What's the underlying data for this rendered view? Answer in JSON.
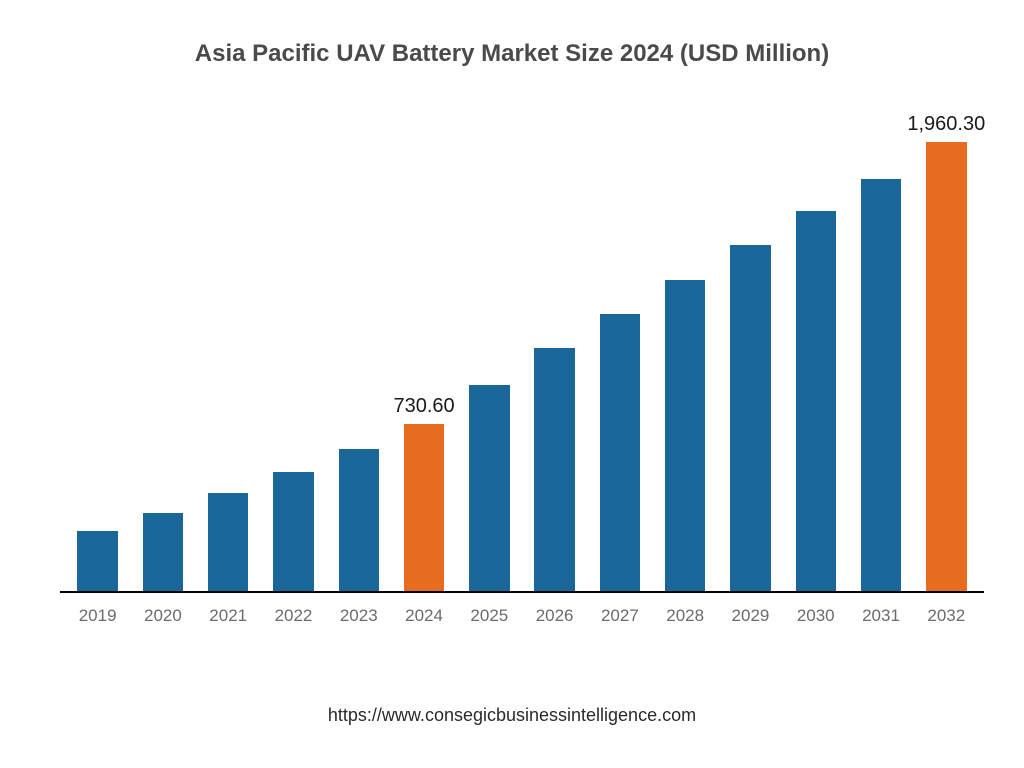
{
  "chart": {
    "type": "bar",
    "title": "Asia Pacific UAV Battery Market Size 2024 (USD Million)",
    "title_fontsize": 24,
    "title_fontweight": "bold",
    "title_color": "#4a4a4a",
    "background_color": "#ffffff",
    "axis_color": "#000000",
    "ymax": 2100,
    "bar_width_pct": 62,
    "x_label_fontsize": 17,
    "x_label_color": "#6b6b6b",
    "value_label_fontsize": 20,
    "value_label_color": "#1a1a1a",
    "years": [
      "2019",
      "2020",
      "2021",
      "2022",
      "2023",
      "2024",
      "2025",
      "2026",
      "2027",
      "2028",
      "2029",
      "2030",
      "2031",
      "2032"
    ],
    "values": [
      260,
      340,
      430,
      520,
      620,
      730.6,
      900,
      1060,
      1210,
      1360,
      1510,
      1660,
      1800,
      1960.3
    ],
    "bar_colors": [
      "#1b6698",
      "#1b6698",
      "#1b6698",
      "#1b6698",
      "#1b6698",
      "#e86c1f",
      "#1b6698",
      "#1b6698",
      "#1b6698",
      "#1b6698",
      "#1b6698",
      "#1b6698",
      "#1b6698",
      "#e86c1f"
    ],
    "value_labels": [
      "",
      "",
      "",
      "",
      "",
      "730.60",
      "",
      "",
      "",
      "",
      "",
      "",
      "",
      "1,960.30"
    ]
  },
  "source": {
    "text": "https://www.consegicbusinessintelligence.com",
    "fontsize": 18,
    "color": "#2a2a2a"
  }
}
